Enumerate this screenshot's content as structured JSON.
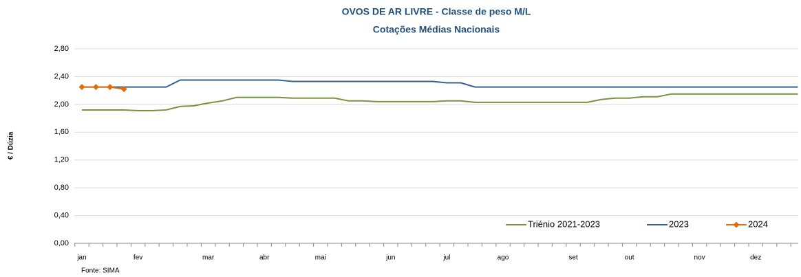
{
  "chart_data": {
    "type": "line",
    "title": "OVOS DE AR LIVRE - Classe de peso M/L",
    "subtitle": "Cotações Médias Nacionais",
    "y_label": "€ / Dúzia",
    "source": "Fonte: SIMA",
    "categories": [
      "jan",
      null,
      null,
      null,
      "fev",
      null,
      null,
      null,
      null,
      "mar",
      null,
      null,
      null,
      "abr",
      null,
      null,
      null,
      "mai",
      null,
      null,
      null,
      null,
      "jun",
      null,
      null,
      null,
      "jul",
      null,
      null,
      null,
      "ago",
      null,
      null,
      null,
      null,
      "set",
      null,
      null,
      null,
      "out",
      null,
      null,
      null,
      null,
      "nov",
      null,
      null,
      null,
      "dez",
      null,
      null,
      null
    ],
    "series": [
      {
        "name": "Triénio 2021-2023",
        "color": "#77933c",
        "values": [
          1.92,
          1.92,
          1.92,
          1.92,
          1.91,
          1.91,
          1.92,
          1.97,
          1.98,
          2.02,
          2.05,
          2.1,
          2.1,
          2.1,
          2.1,
          2.09,
          2.09,
          2.09,
          2.09,
          2.05,
          2.05,
          2.04,
          2.04,
          2.04,
          2.04,
          2.04,
          2.05,
          2.05,
          2.03,
          2.03,
          2.03,
          2.03,
          2.03,
          2.03,
          2.03,
          2.03,
          2.03,
          2.07,
          2.09,
          2.09,
          2.11,
          2.11,
          2.15,
          2.15,
          2.15,
          2.15,
          2.15,
          2.15,
          2.15,
          2.15,
          2.15,
          2.15
        ]
      },
      {
        "name": "2023",
        "color": "#376092",
        "values": [
          2.25,
          2.25,
          2.25,
          2.25,
          2.25,
          2.25,
          2.25,
          2.35,
          2.35,
          2.35,
          2.35,
          2.35,
          2.35,
          2.35,
          2.35,
          2.33,
          2.33,
          2.33,
          2.33,
          2.33,
          2.33,
          2.33,
          2.33,
          2.33,
          2.33,
          2.33,
          2.31,
          2.31,
          2.25,
          2.25,
          2.25,
          2.25,
          2.25,
          2.25,
          2.25,
          2.25,
          2.25,
          2.25,
          2.25,
          2.25,
          2.25,
          2.25,
          2.25,
          2.25,
          2.25,
          2.25,
          2.25,
          2.25,
          2.25,
          2.25,
          2.25,
          2.25
        ]
      },
      {
        "name": "2024",
        "color": "#e36c09",
        "marker": "diamond",
        "values": [
          2.25,
          2.25,
          2.25,
          2.22,
          null,
          null,
          null,
          null,
          null,
          null,
          null,
          null,
          null,
          null,
          null,
          null,
          null,
          null,
          null,
          null,
          null,
          null,
          null,
          null,
          null,
          null,
          null,
          null,
          null,
          null,
          null,
          null,
          null,
          null,
          null,
          null,
          null,
          null,
          null,
          null,
          null,
          null,
          null,
          null,
          null,
          null,
          null,
          null,
          null,
          null,
          null,
          null
        ]
      }
    ],
    "ylim": [
      0,
      2.8
    ],
    "yticks": [
      {
        "value": 0,
        "label": "0,00"
      },
      {
        "value": 0.4,
        "label": "0,40"
      },
      {
        "value": 0.8,
        "label": "0,80"
      },
      {
        "value": 1.2,
        "label": "1,20"
      },
      {
        "value": 1.6,
        "label": "1,60"
      },
      {
        "value": 2.0,
        "label": "2,00"
      },
      {
        "value": 2.4,
        "label": "2,40"
      },
      {
        "value": 2.8,
        "label": "2,80"
      }
    ],
    "grid": true,
    "legend": "bottom-right"
  }
}
